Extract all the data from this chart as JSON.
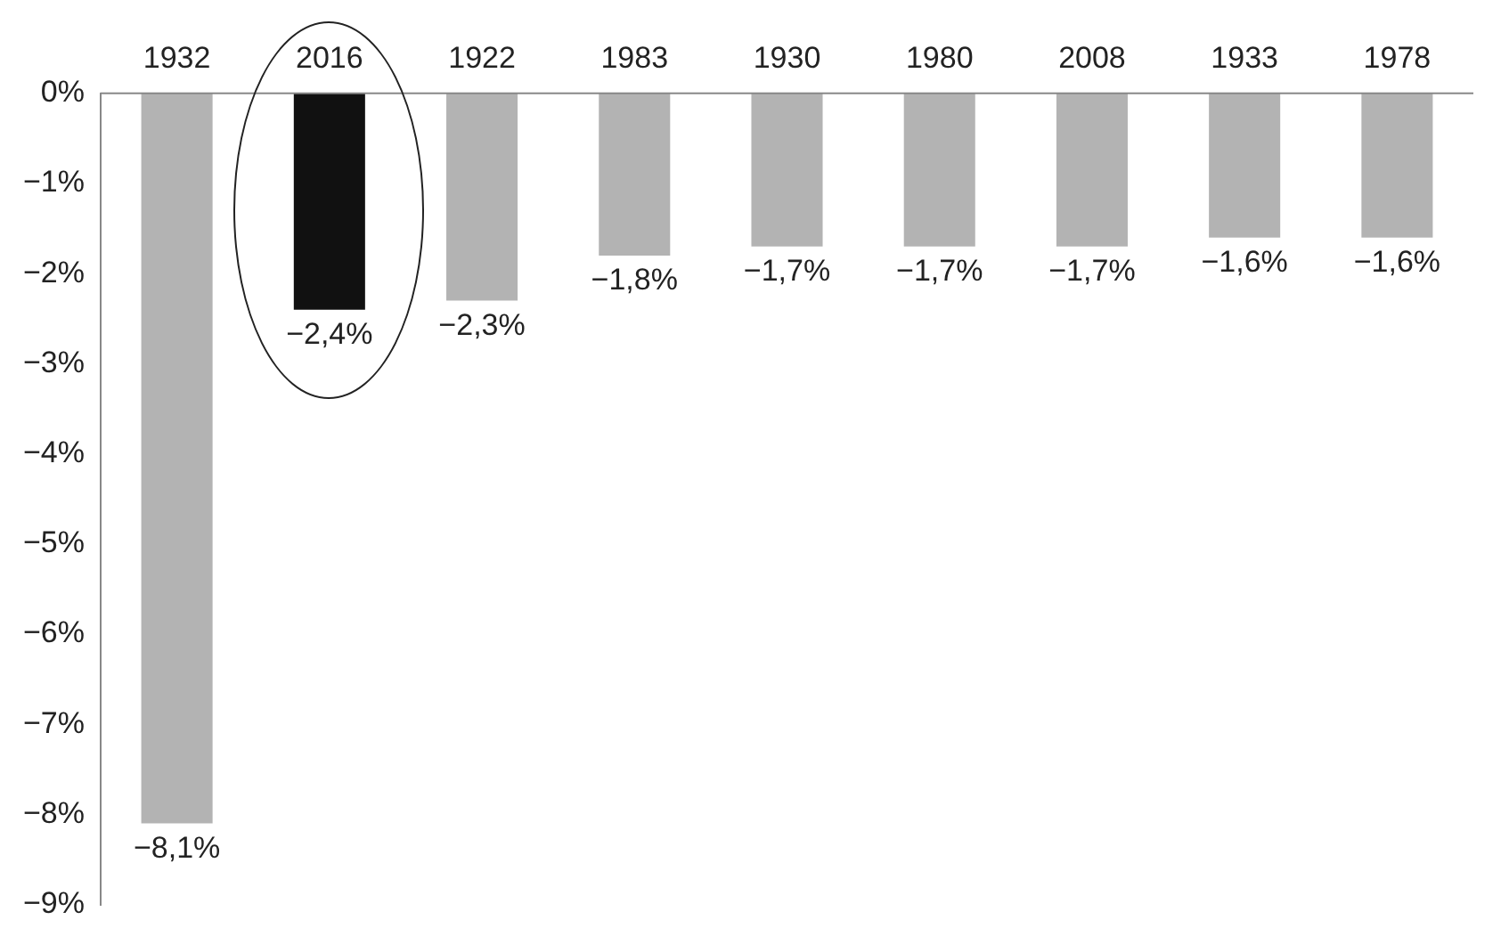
{
  "chart_data": {
    "type": "bar",
    "categories": [
      "1932",
      "2016",
      "1922",
      "1983",
      "1930",
      "1980",
      "2008",
      "1933",
      "1978"
    ],
    "values": [
      -8.1,
      -2.4,
      -2.3,
      -1.8,
      -1.7,
      -1.7,
      -1.7,
      -1.6,
      -1.6
    ],
    "colors": [
      "#b3b3b3",
      "#111111",
      "#b3b3b3",
      "#b3b3b3",
      "#b3b3b3",
      "#b3b3b3",
      "#b3b3b3",
      "#b3b3b3",
      "#b3b3b3"
    ],
    "value_labels": [
      "−8,1%",
      "−2,4%",
      "−2,3%",
      "−1,8%",
      "−1,7%",
      "−1,7%",
      "−1,7%",
      "−1,6%",
      "−1,6%"
    ],
    "ylim": [
      -9,
      0
    ],
    "yticks": [
      {
        "value": 0,
        "label": "0%"
      },
      {
        "value": -1,
        "label": "−1%"
      },
      {
        "value": -2,
        "label": "−2%"
      },
      {
        "value": -3,
        "label": "−3%"
      },
      {
        "value": -4,
        "label": "−4%"
      },
      {
        "value": -5,
        "label": "−5%"
      },
      {
        "value": -6,
        "label": "−6%"
      },
      {
        "value": -7,
        "label": "−7%"
      },
      {
        "value": -8,
        "label": "−8%"
      },
      {
        "value": -9,
        "label": "−9%"
      }
    ],
    "grid": false,
    "legend": false
  }
}
